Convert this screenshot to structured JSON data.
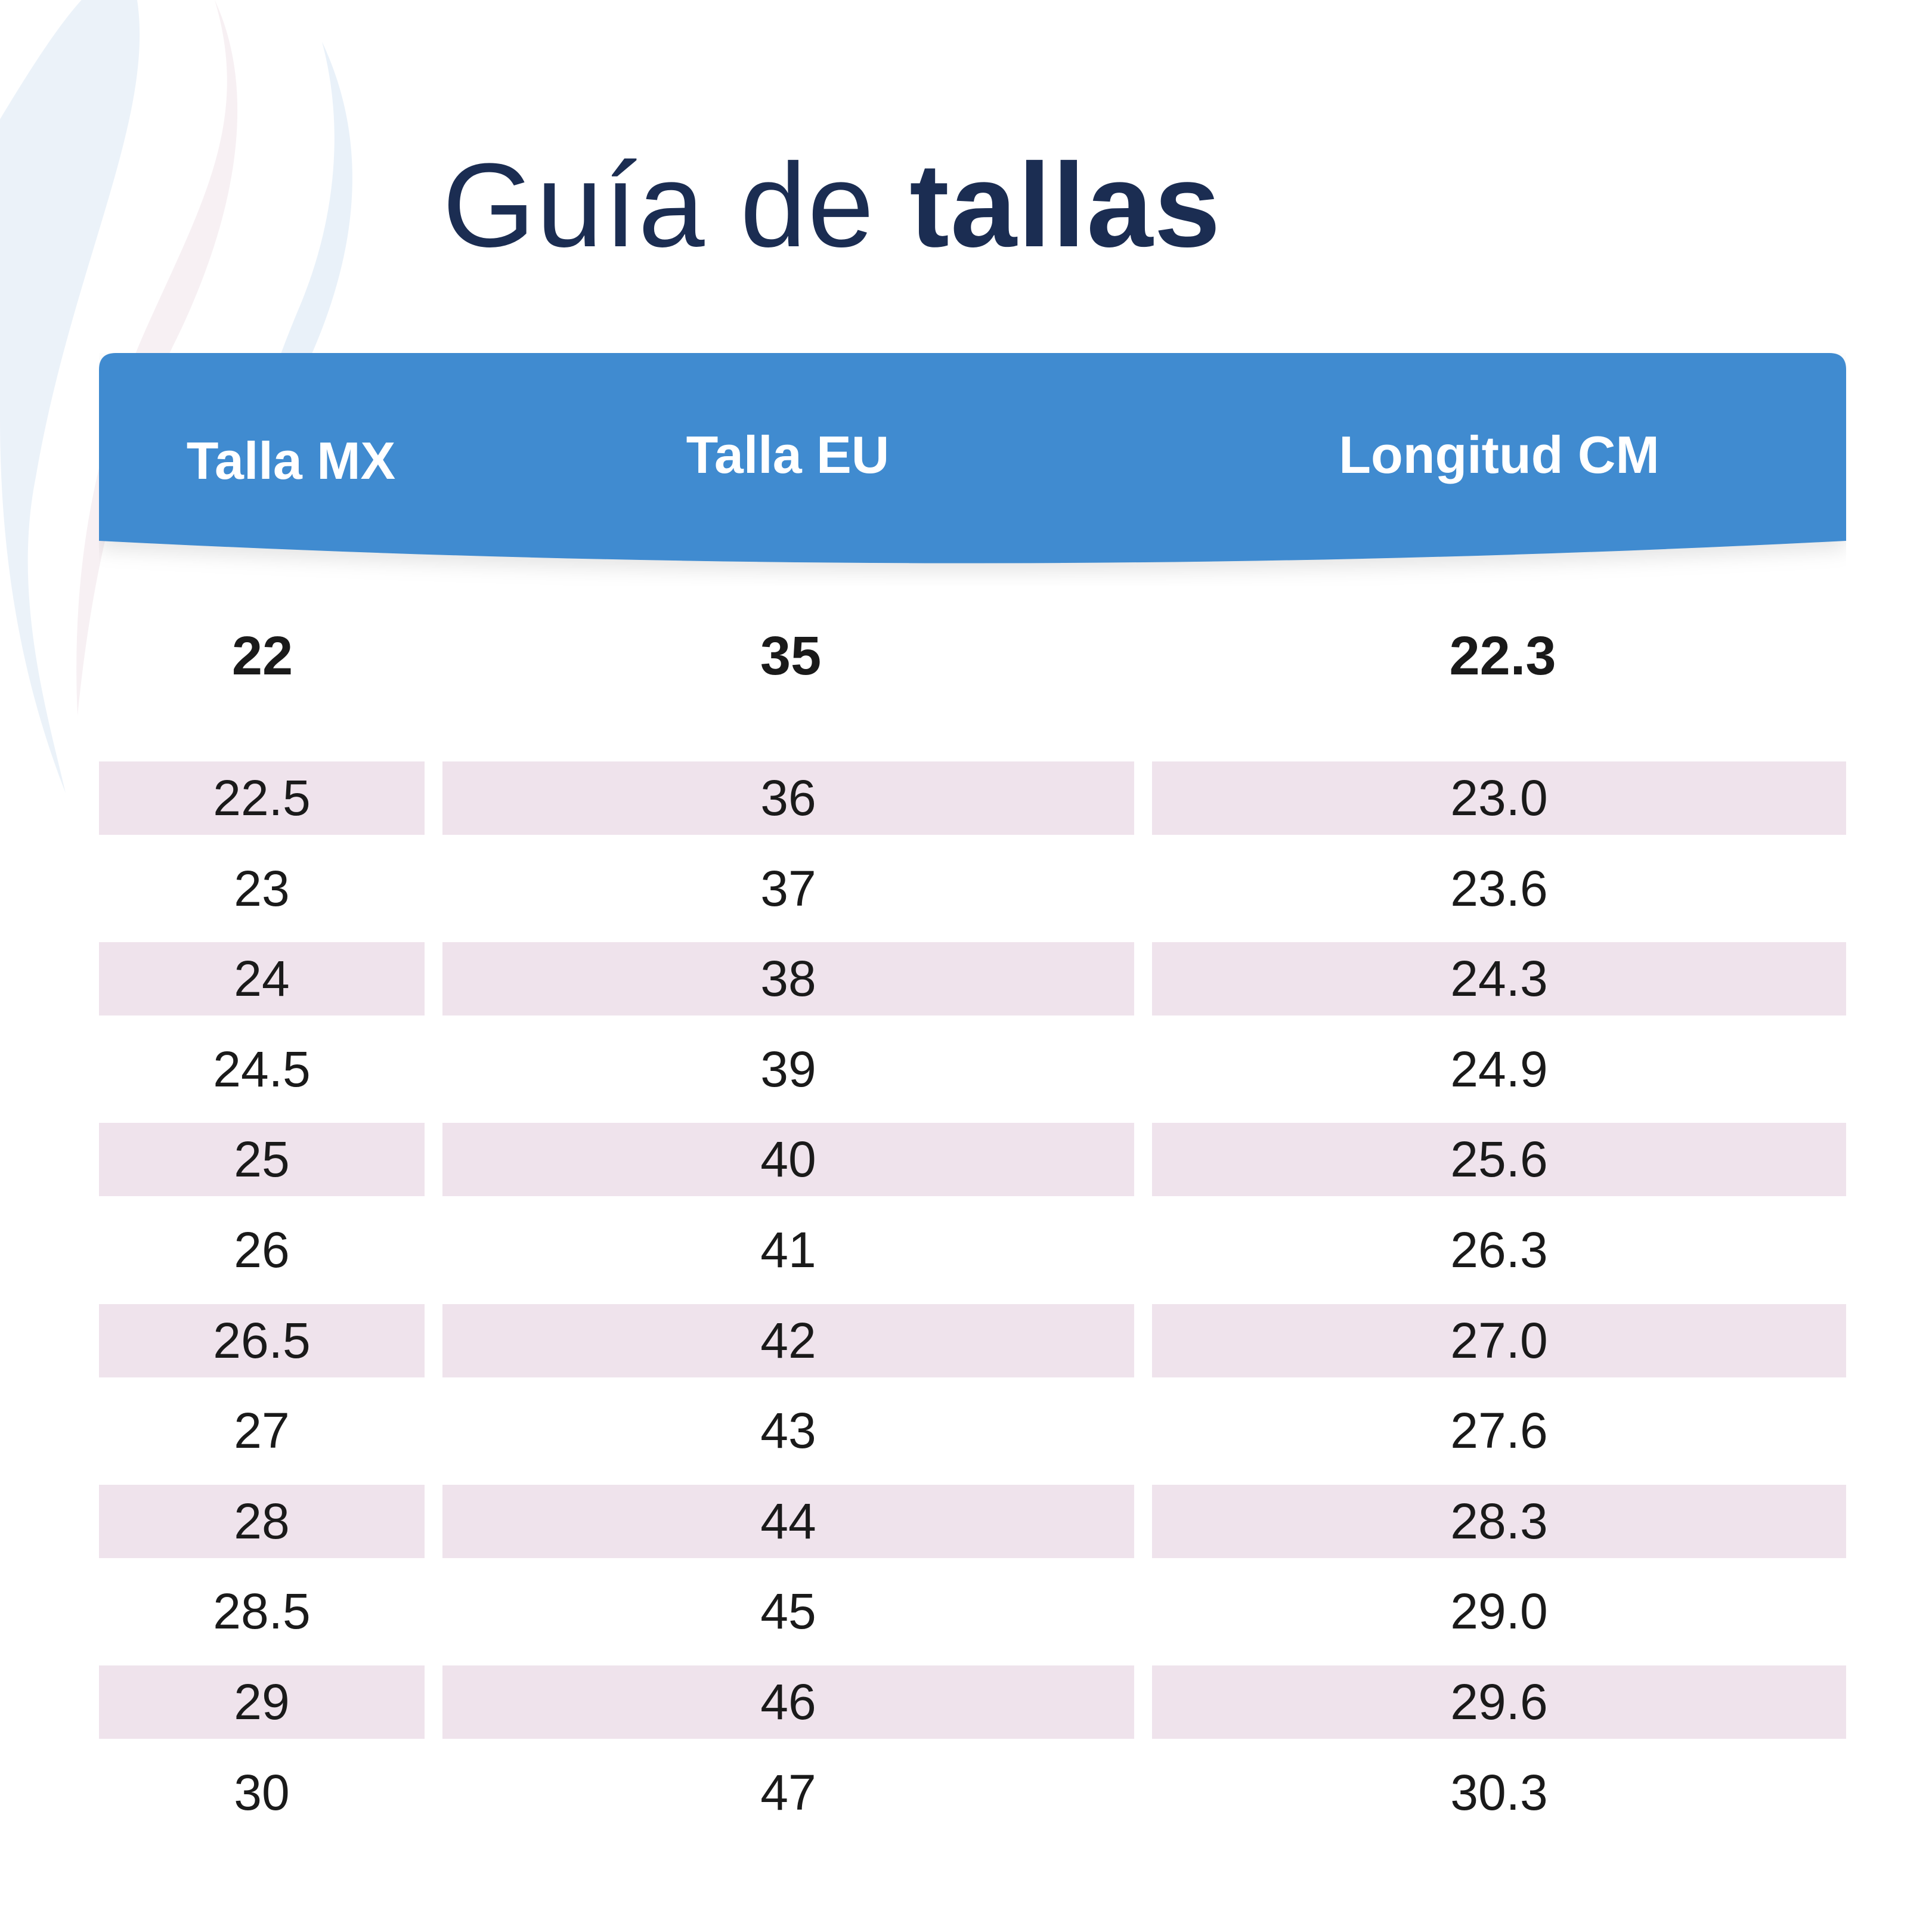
{
  "title": {
    "light": "Guía de",
    "bold": "tallas"
  },
  "colors": {
    "header": "#418bd0",
    "title": "#1b2d52",
    "row_shade": "#efe3ec"
  },
  "table": {
    "headers": [
      "Talla MX",
      "Talla EU",
      "Longitud CM"
    ],
    "first_row": [
      "22",
      "35",
      "22.3"
    ],
    "rows": [
      [
        "22.5",
        "36",
        "23.0"
      ],
      [
        "23",
        "37",
        "23.6"
      ],
      [
        "24",
        "38",
        "24.3"
      ],
      [
        "24.5",
        "39",
        "24.9"
      ],
      [
        "25",
        "40",
        "25.6"
      ],
      [
        "26",
        "41",
        "26.3"
      ],
      [
        "26.5",
        "42",
        "27.0"
      ],
      [
        "27",
        "43",
        "27.6"
      ],
      [
        "28",
        "44",
        "28.3"
      ],
      [
        "28.5",
        "45",
        "29.0"
      ],
      [
        "29",
        "46",
        "29.6"
      ],
      [
        "30",
        "47",
        "30.3"
      ]
    ]
  }
}
